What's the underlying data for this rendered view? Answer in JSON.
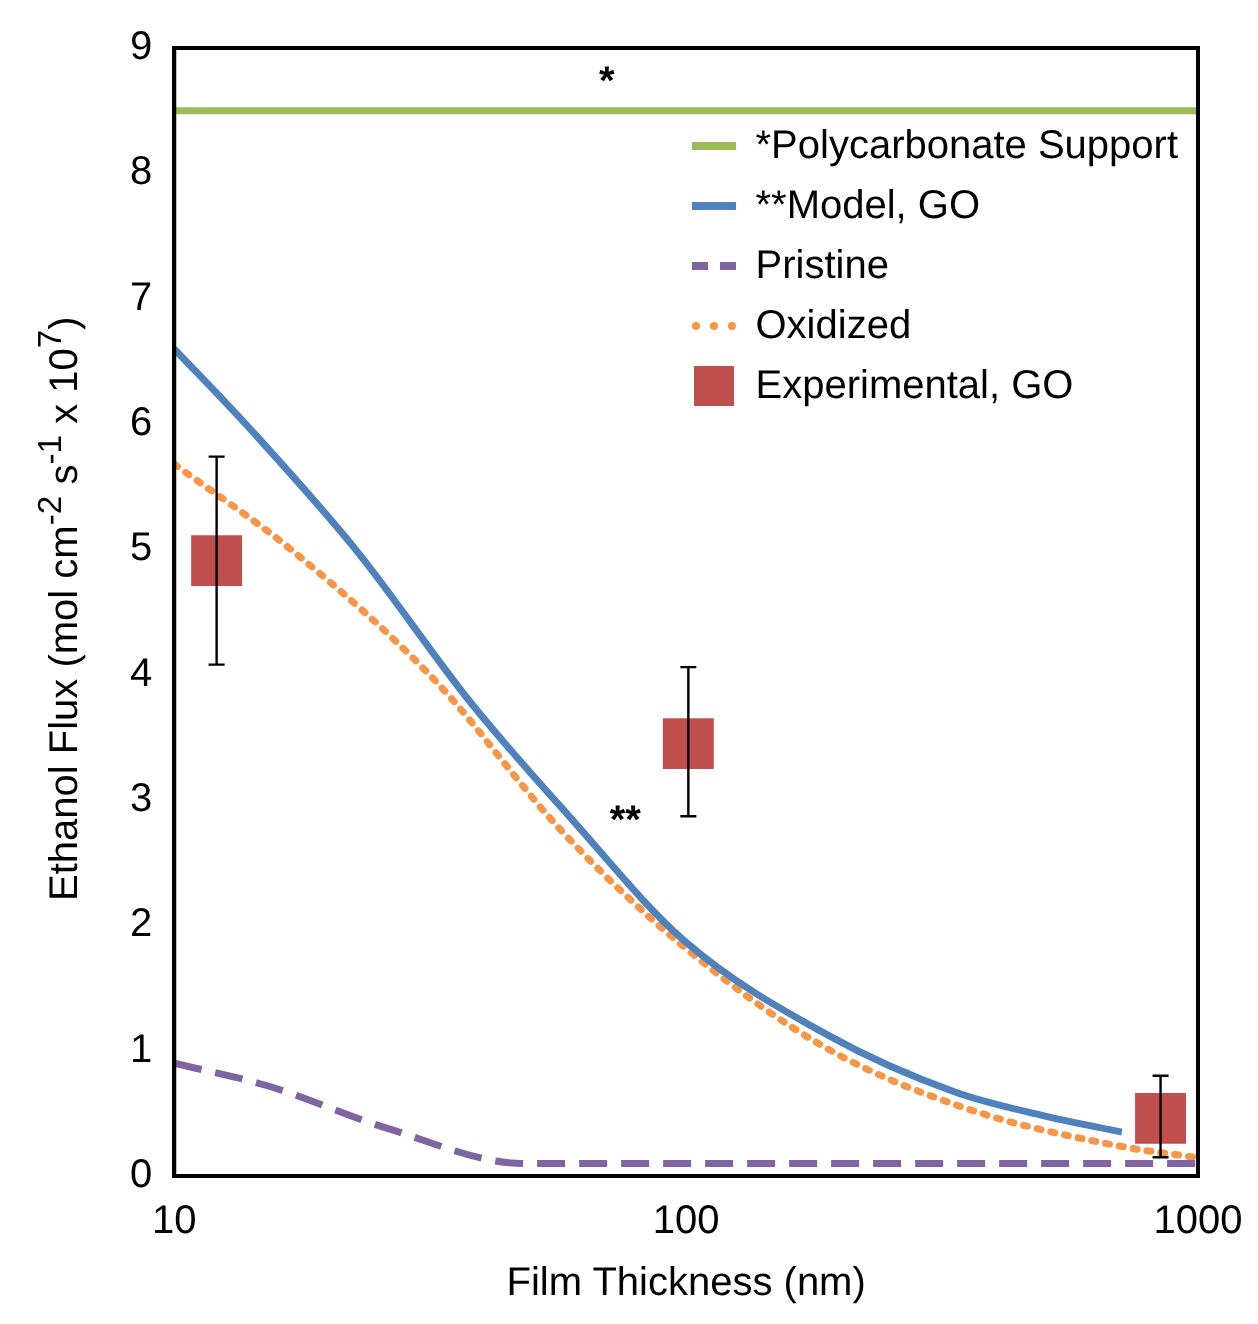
{
  "chart_data": {
    "type": "line",
    "xlabel": "Film Thickness (nm)",
    "ylabel": "Ethanol Flux (mol cm$^{-2}$ s$^{-1}$ x 10$^{7}$)",
    "log": "x",
    "xlim": [
      10,
      1000
    ],
    "xticks": [
      10,
      100,
      1000
    ],
    "ylim": [
      0,
      9
    ],
    "yticks": [
      0,
      1,
      2,
      3,
      4,
      5,
      6,
      7,
      8,
      9
    ],
    "grid": false,
    "legend": "top right",
    "series": [
      {
        "name": "*Polycarbonate Support",
        "color": "#9bbb59",
        "line_style": "solid",
        "marker": "none",
        "x": [
          10,
          1000
        ],
        "values": [
          8.5,
          8.5
        ]
      },
      {
        "name": "**Model, GO",
        "color": "#4f81bd",
        "line_style": "solid",
        "marker": "none",
        "x": [
          10,
          14,
          22.7,
          37.9,
          59.4,
          99,
          188,
          335,
          500,
          710
        ],
        "values": [
          6.6,
          5.97,
          4.99,
          3.78,
          2.86,
          1.88,
          1.13,
          0.67,
          0.48,
          0.35
        ]
      },
      {
        "name": "Pristine",
        "color": "#8064a2",
        "line_style": "dashed",
        "marker": "none",
        "x": [
          10,
          15.2,
          26.1,
          48.2,
          100,
          1000
        ],
        "values": [
          0.9,
          0.72,
          0.38,
          0.1,
          0.1,
          0.1
        ]
      },
      {
        "name": "Oxidized",
        "color": "#f79646",
        "line_style": "dotted",
        "marker": "none",
        "x": [
          10,
          17,
          32.2,
          57.5,
          99.6,
          188,
          358,
          700,
          980
        ],
        "values": [
          5.68,
          4.99,
          3.96,
          2.74,
          1.82,
          1.02,
          0.53,
          0.24,
          0.15
        ]
      },
      {
        "type": "scatter",
        "name": "Experimental, GO",
        "color": "#c0504d",
        "marker": "square",
        "x": [
          12.1,
          101,
          845
        ],
        "values": [
          4.91,
          3.45,
          0.46
        ],
        "errors": [
          [
            4.08,
            5.74
          ],
          [
            2.87,
            4.06
          ],
          [
            0.15,
            0.8
          ]
        ]
      }
    ],
    "annotations": [
      {
        "text": "*",
        "x": 70,
        "y": 8.5
      },
      {
        "text": "**",
        "x": 66,
        "y": 2.7
      }
    ]
  }
}
